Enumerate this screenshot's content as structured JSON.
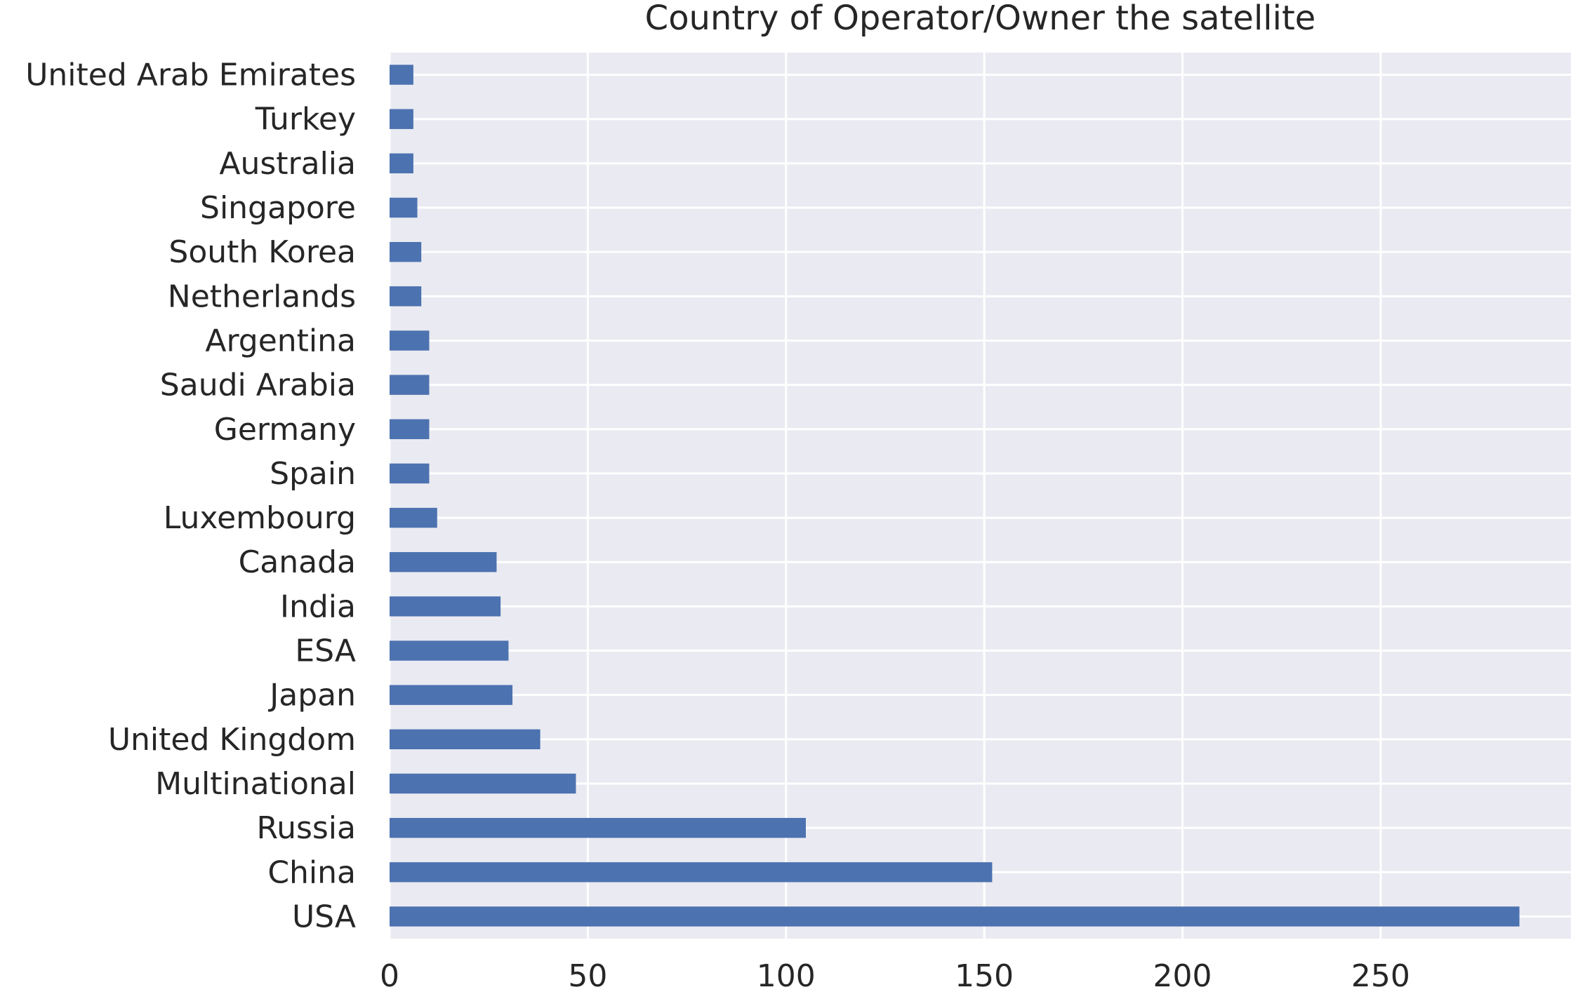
{
  "chart_data": {
    "type": "bar",
    "orientation": "horizontal",
    "title": "Country of Operator/Owner the satellite",
    "xlabel": "",
    "ylabel": "",
    "categories": [
      "USA",
      "China",
      "Russia",
      "Multinational",
      "United Kingdom",
      "Japan",
      "ESA",
      "India",
      "Canada",
      "Luxembourg",
      "Spain",
      "Germany",
      "Saudi Arabia",
      "Argentina",
      "Netherlands",
      "South Korea",
      "Singapore",
      "Australia",
      "Turkey",
      "United Arab Emirates"
    ],
    "values": [
      285,
      152,
      105,
      47,
      38,
      31,
      30,
      28,
      27,
      12,
      10,
      10,
      10,
      10,
      8,
      8,
      7,
      6,
      6,
      6
    ],
    "xlim": [
      0,
      298
    ],
    "xticks": [
      0,
      50,
      100,
      150,
      200,
      250
    ],
    "grid": true,
    "legend": "none",
    "colors": {
      "bar": "#4c72b0",
      "plot_background": "#eaeaf2",
      "grid": "#ffffff",
      "text": "#262626"
    }
  }
}
